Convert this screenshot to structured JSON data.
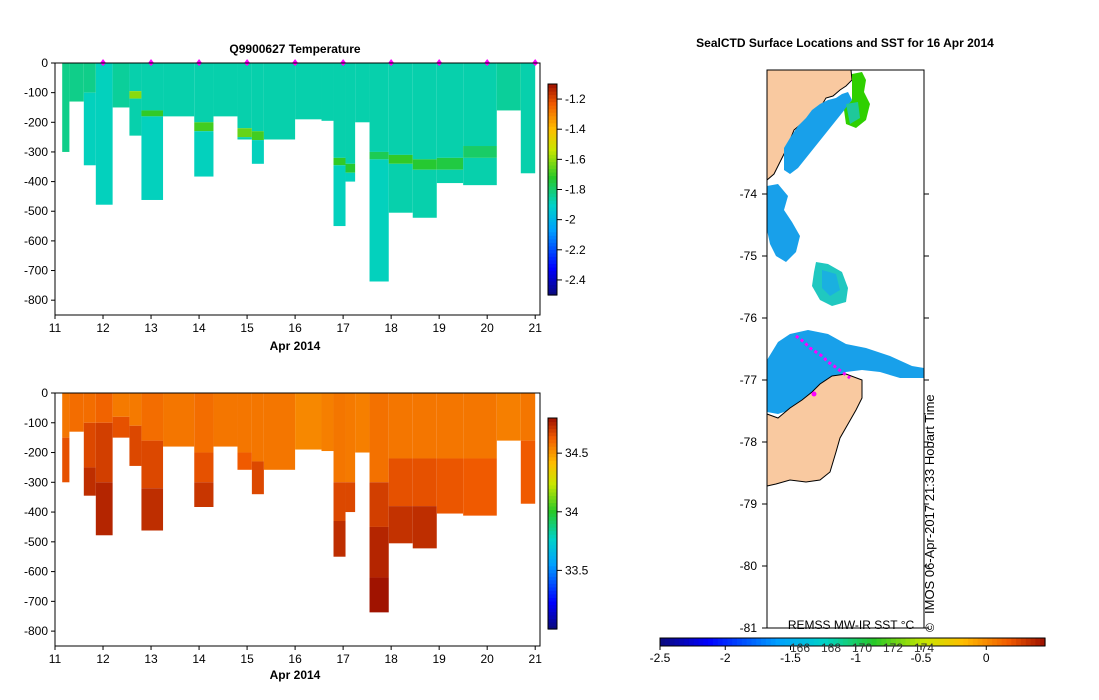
{
  "chart_data": [
    {
      "type": "heatmap",
      "title": "Q9900627  Temperature",
      "xlabel": "Apr 2014",
      "ylabel": "",
      "xlim": [
        11,
        21.1
      ],
      "ylim": [
        -850,
        0
      ],
      "x_ticks": [
        "11",
        "12",
        "13",
        "14",
        "15",
        "16",
        "17",
        "18",
        "19",
        "20",
        "21"
      ],
      "y_ticks": [
        "0",
        "-100",
        "-200",
        "-300",
        "-400",
        "-500",
        "-600",
        "-700",
        "-800"
      ],
      "colorbar": {
        "min": -2.5,
        "max": -1.1,
        "ticks": [
          "-1.2",
          "-1.4",
          "-1.6",
          "-1.8",
          "-2",
          "-2.2",
          "-2.4"
        ]
      },
      "surface_markers": [
        12,
        13,
        14,
        15,
        16,
        17,
        18,
        19,
        20,
        21
      ],
      "profiles": [
        {
          "x0": 11.15,
          "x1": 11.3,
          "bottom": 300,
          "bands": [
            {
              "top": 0,
              "bot": 300,
              "v": -1.84
            }
          ]
        },
        {
          "x0": 11.3,
          "x1": 11.6,
          "bottom": 130,
          "bands": [
            {
              "top": 0,
              "bot": 130,
              "v": -1.84
            }
          ]
        },
        {
          "x0": 11.6,
          "x1": 11.85,
          "bottom": 345,
          "bands": [
            {
              "top": 0,
              "bot": 100,
              "v": -1.84
            },
            {
              "top": 100,
              "bot": 345,
              "v": -1.9
            }
          ]
        },
        {
          "x0": 11.85,
          "x1": 12.2,
          "bottom": 478,
          "bands": [
            {
              "top": 0,
              "bot": 478,
              "v": -1.9
            }
          ]
        },
        {
          "x0": 12.2,
          "x1": 12.55,
          "bottom": 150,
          "bands": [
            {
              "top": 0,
              "bot": 150,
              "v": -1.86
            }
          ]
        },
        {
          "x0": 12.55,
          "x1": 12.8,
          "bottom": 245,
          "bands": [
            {
              "top": 0,
              "bot": 95,
              "v": -1.88
            },
            {
              "top": 95,
              "bot": 120,
              "v": -1.62
            },
            {
              "top": 120,
              "bot": 245,
              "v": -1.88
            }
          ]
        },
        {
          "x0": 12.8,
          "x1": 13.25,
          "bottom": 462,
          "bands": [
            {
              "top": 0,
              "bot": 160,
              "v": -1.88
            },
            {
              "top": 160,
              "bot": 180,
              "v": -1.72
            },
            {
              "top": 180,
              "bot": 462,
              "v": -1.9
            }
          ]
        },
        {
          "x0": 13.25,
          "x1": 13.9,
          "bottom": 180,
          "bands": [
            {
              "top": 0,
              "bot": 180,
              "v": -1.88
            }
          ]
        },
        {
          "x0": 13.9,
          "x1": 14.3,
          "bottom": 383,
          "bands": [
            {
              "top": 0,
              "bot": 200,
              "v": -1.88
            },
            {
              "top": 200,
              "bot": 230,
              "v": -1.7
            },
            {
              "top": 230,
              "bot": 383,
              "v": -1.9
            }
          ]
        },
        {
          "x0": 14.3,
          "x1": 14.8,
          "bottom": 180,
          "bands": [
            {
              "top": 0,
              "bot": 180,
              "v": -1.88
            }
          ]
        },
        {
          "x0": 14.8,
          "x1": 15.1,
          "bottom": 258,
          "bands": [
            {
              "top": 0,
              "bot": 220,
              "v": -1.88
            },
            {
              "top": 220,
              "bot": 250,
              "v": -1.66
            },
            {
              "top": 250,
              "bot": 258,
              "v": -1.88
            }
          ]
        },
        {
          "x0": 15.1,
          "x1": 15.35,
          "bottom": 340,
          "bands": [
            {
              "top": 0,
              "bot": 230,
              "v": -1.88
            },
            {
              "top": 230,
              "bot": 260,
              "v": -1.7
            },
            {
              "top": 260,
              "bot": 340,
              "v": -1.9
            }
          ]
        },
        {
          "x0": 15.35,
          "x1": 16.0,
          "bottom": 258,
          "bands": [
            {
              "top": 0,
              "bot": 258,
              "v": -1.88
            }
          ]
        },
        {
          "x0": 16.0,
          "x1": 16.55,
          "bottom": 190,
          "bands": [
            {
              "top": 0,
              "bot": 190,
              "v": -1.88
            }
          ]
        },
        {
          "x0": 16.55,
          "x1": 16.8,
          "bottom": 195,
          "bands": [
            {
              "top": 0,
              "bot": 195,
              "v": -1.88
            }
          ]
        },
        {
          "x0": 16.8,
          "x1": 17.05,
          "bottom": 550,
          "bands": [
            {
              "top": 0,
              "bot": 320,
              "v": -1.88
            },
            {
              "top": 320,
              "bot": 345,
              "v": -1.72
            },
            {
              "top": 345,
              "bot": 550,
              "v": -1.9
            }
          ]
        },
        {
          "x0": 17.05,
          "x1": 17.25,
          "bottom": 400,
          "bands": [
            {
              "top": 0,
              "bot": 340,
              "v": -1.88
            },
            {
              "top": 340,
              "bot": 370,
              "v": -1.74
            },
            {
              "top": 370,
              "bot": 400,
              "v": -1.9
            }
          ]
        },
        {
          "x0": 17.25,
          "x1": 17.55,
          "bottom": 200,
          "bands": [
            {
              "top": 0,
              "bot": 200,
              "v": -1.88
            }
          ]
        },
        {
          "x0": 17.55,
          "x1": 17.95,
          "bottom": 737,
          "bands": [
            {
              "top": 0,
              "bot": 300,
              "v": -1.88
            },
            {
              "top": 300,
              "bot": 325,
              "v": -1.78
            },
            {
              "top": 325,
              "bot": 737,
              "v": -1.9
            }
          ]
        },
        {
          "x0": 17.95,
          "x1": 18.45,
          "bottom": 505,
          "bands": [
            {
              "top": 0,
              "bot": 310,
              "v": -1.88
            },
            {
              "top": 310,
              "bot": 340,
              "v": -1.72
            },
            {
              "top": 340,
              "bot": 505,
              "v": -1.88
            }
          ]
        },
        {
          "x0": 18.45,
          "x1": 18.95,
          "bottom": 522,
          "bands": [
            {
              "top": 0,
              "bot": 325,
              "v": -1.88
            },
            {
              "top": 325,
              "bot": 360,
              "v": -1.74
            },
            {
              "top": 360,
              "bot": 522,
              "v": -1.88
            }
          ]
        },
        {
          "x0": 18.95,
          "x1": 19.5,
          "bottom": 405,
          "bands": [
            {
              "top": 0,
              "bot": 320,
              "v": -1.88
            },
            {
              "top": 320,
              "bot": 360,
              "v": -1.76
            },
            {
              "top": 360,
              "bot": 405,
              "v": -1.88
            }
          ]
        },
        {
          "x0": 19.5,
          "x1": 20.2,
          "bottom": 412,
          "bands": [
            {
              "top": 0,
              "bot": 280,
              "v": -1.88
            },
            {
              "top": 280,
              "bot": 320,
              "v": -1.8
            },
            {
              "top": 320,
              "bot": 412,
              "v": -1.88
            }
          ]
        },
        {
          "x0": 20.2,
          "x1": 20.7,
          "bottom": 160,
          "bands": [
            {
              "top": 0,
              "bot": 160,
              "v": -1.86
            }
          ]
        },
        {
          "x0": 20.7,
          "x1": 21.0,
          "bottom": 372,
          "bands": [
            {
              "top": 0,
              "bot": 372,
              "v": -1.88
            }
          ]
        }
      ]
    },
    {
      "type": "heatmap",
      "title": "",
      "xlabel": "Apr 2014",
      "ylabel": "",
      "xlim": [
        11,
        21.1
      ],
      "ylim": [
        -850,
        0
      ],
      "x_ticks": [
        "11",
        "12",
        "13",
        "14",
        "15",
        "16",
        "17",
        "18",
        "19",
        "20",
        "21"
      ],
      "y_ticks": [
        "0",
        "-100",
        "-200",
        "-300",
        "-400",
        "-500",
        "-600",
        "-700",
        "-800"
      ],
      "colorbar": {
        "min": 33.0,
        "max": 34.8,
        "ticks": [
          "34.5",
          "34",
          "33.5"
        ]
      },
      "profiles": [
        {
          "x0": 11.15,
          "x1": 11.3,
          "bottom": 300,
          "bands": [
            {
              "top": 0,
              "bot": 150,
              "v": 34.56
            },
            {
              "top": 150,
              "bot": 300,
              "v": 34.64
            }
          ]
        },
        {
          "x0": 11.3,
          "x1": 11.6,
          "bottom": 130,
          "bands": [
            {
              "top": 0,
              "bot": 130,
              "v": 34.58
            }
          ]
        },
        {
          "x0": 11.6,
          "x1": 11.85,
          "bottom": 345,
          "bands": [
            {
              "top": 0,
              "bot": 100,
              "v": 34.58
            },
            {
              "top": 100,
              "bot": 250,
              "v": 34.66
            },
            {
              "top": 250,
              "bot": 345,
              "v": 34.72
            }
          ]
        },
        {
          "x0": 11.85,
          "x1": 12.2,
          "bottom": 478,
          "bands": [
            {
              "top": 0,
              "bot": 100,
              "v": 34.6
            },
            {
              "top": 100,
              "bot": 300,
              "v": 34.68
            },
            {
              "top": 300,
              "bot": 478,
              "v": 34.74
            }
          ]
        },
        {
          "x0": 12.2,
          "x1": 12.55,
          "bottom": 150,
          "bands": [
            {
              "top": 0,
              "bot": 80,
              "v": 34.55
            },
            {
              "top": 80,
              "bot": 150,
              "v": 34.64
            }
          ]
        },
        {
          "x0": 12.55,
          "x1": 12.8,
          "bottom": 245,
          "bands": [
            {
              "top": 0,
              "bot": 110,
              "v": 34.55
            },
            {
              "top": 110,
              "bot": 245,
              "v": 34.66
            }
          ]
        },
        {
          "x0": 12.8,
          "x1": 13.25,
          "bottom": 462,
          "bands": [
            {
              "top": 0,
              "bot": 160,
              "v": 34.58
            },
            {
              "top": 160,
              "bot": 320,
              "v": 34.66
            },
            {
              "top": 320,
              "bot": 462,
              "v": 34.72
            }
          ]
        },
        {
          "x0": 13.25,
          "x1": 13.9,
          "bottom": 180,
          "bands": [
            {
              "top": 0,
              "bot": 180,
              "v": 34.56
            }
          ]
        },
        {
          "x0": 13.9,
          "x1": 14.3,
          "bottom": 383,
          "bands": [
            {
              "top": 0,
              "bot": 200,
              "v": 34.58
            },
            {
              "top": 200,
              "bot": 300,
              "v": 34.64
            },
            {
              "top": 300,
              "bot": 383,
              "v": 34.7
            }
          ]
        },
        {
          "x0": 14.3,
          "x1": 14.8,
          "bottom": 180,
          "bands": [
            {
              "top": 0,
              "bot": 180,
              "v": 34.56
            }
          ]
        },
        {
          "x0": 14.8,
          "x1": 15.1,
          "bottom": 258,
          "bands": [
            {
              "top": 0,
              "bot": 200,
              "v": 34.56
            },
            {
              "top": 200,
              "bot": 258,
              "v": 34.62
            }
          ]
        },
        {
          "x0": 15.1,
          "x1": 15.35,
          "bottom": 340,
          "bands": [
            {
              "top": 0,
              "bot": 230,
              "v": 34.56
            },
            {
              "top": 230,
              "bot": 340,
              "v": 34.66
            }
          ]
        },
        {
          "x0": 15.35,
          "x1": 16.0,
          "bottom": 258,
          "bands": [
            {
              "top": 0,
              "bot": 258,
              "v": 34.56
            }
          ]
        },
        {
          "x0": 16.0,
          "x1": 16.55,
          "bottom": 190,
          "bands": [
            {
              "top": 0,
              "bot": 190,
              "v": 34.52
            }
          ]
        },
        {
          "x0": 16.55,
          "x1": 16.8,
          "bottom": 195,
          "bands": [
            {
              "top": 0,
              "bot": 195,
              "v": 34.54
            }
          ]
        },
        {
          "x0": 16.8,
          "x1": 17.05,
          "bottom": 550,
          "bands": [
            {
              "top": 0,
              "bot": 300,
              "v": 34.56
            },
            {
              "top": 300,
              "bot": 430,
              "v": 34.66
            },
            {
              "top": 430,
              "bot": 550,
              "v": 34.72
            }
          ]
        },
        {
          "x0": 17.05,
          "x1": 17.25,
          "bottom": 400,
          "bands": [
            {
              "top": 0,
              "bot": 300,
              "v": 34.55
            },
            {
              "top": 300,
              "bot": 400,
              "v": 34.66
            }
          ]
        },
        {
          "x0": 17.25,
          "x1": 17.55,
          "bottom": 200,
          "bands": [
            {
              "top": 0,
              "bot": 200,
              "v": 34.54
            }
          ]
        },
        {
          "x0": 17.55,
          "x1": 17.95,
          "bottom": 737,
          "bands": [
            {
              "top": 0,
              "bot": 300,
              "v": 34.57
            },
            {
              "top": 300,
              "bot": 450,
              "v": 34.68
            },
            {
              "top": 450,
              "bot": 620,
              "v": 34.74
            },
            {
              "top": 620,
              "bot": 737,
              "v": 34.78
            }
          ]
        },
        {
          "x0": 17.95,
          "x1": 18.45,
          "bottom": 505,
          "bands": [
            {
              "top": 0,
              "bot": 220,
              "v": 34.56
            },
            {
              "top": 220,
              "bot": 380,
              "v": 34.64
            },
            {
              "top": 380,
              "bot": 505,
              "v": 34.71
            }
          ]
        },
        {
          "x0": 18.45,
          "x1": 18.95,
          "bottom": 522,
          "bands": [
            {
              "top": 0,
              "bot": 220,
              "v": 34.56
            },
            {
              "top": 220,
              "bot": 380,
              "v": 34.64
            },
            {
              "top": 380,
              "bot": 522,
              "v": 34.72
            }
          ]
        },
        {
          "x0": 18.95,
          "x1": 19.5,
          "bottom": 405,
          "bands": [
            {
              "top": 0,
              "bot": 220,
              "v": 34.56
            },
            {
              "top": 220,
              "bot": 405,
              "v": 34.63
            }
          ]
        },
        {
          "x0": 19.5,
          "x1": 20.2,
          "bottom": 412,
          "bands": [
            {
              "top": 0,
              "bot": 220,
              "v": 34.56
            },
            {
              "top": 220,
              "bot": 412,
              "v": 34.62
            }
          ]
        },
        {
          "x0": 20.2,
          "x1": 20.7,
          "bottom": 160,
          "bands": [
            {
              "top": 0,
              "bot": 160,
              "v": 34.54
            }
          ]
        },
        {
          "x0": 20.7,
          "x1": 21.0,
          "bottom": 372,
          "bands": [
            {
              "top": 0,
              "bot": 160,
              "v": 34.56
            },
            {
              "top": 160,
              "bot": 372,
              "v": 34.62
            }
          ]
        }
      ]
    },
    {
      "type": "heatmap",
      "title": "SealCTD Surface Locations and SST for 16 Apr 2014",
      "xlabel": "",
      "ylabel": "",
      "ylim": [
        -81,
        -72
      ],
      "y_ticks": [
        "-74",
        "-75",
        "-76",
        "-77",
        "-78",
        "-79",
        "-80",
        "-81"
      ],
      "colorbar": {
        "min": -2.5,
        "max": 0.45,
        "label": "REMSS MW-IR SST °C",
        "ticks": [
          "-2.5",
          "-2",
          "-1.5",
          "-1",
          "-0.5",
          "0"
        ],
        "longitude_ticks": [
          "166",
          "168",
          "170",
          "172",
          "174"
        ]
      },
      "watermark": "IMOS 06-Apr-2017 21:33 Hobart Time",
      "copyright": "©"
    }
  ],
  "colors": {
    "land": "#f9c9a0",
    "sst_dominant": "#18a0ea",
    "seal_track": "#ff00ff"
  }
}
